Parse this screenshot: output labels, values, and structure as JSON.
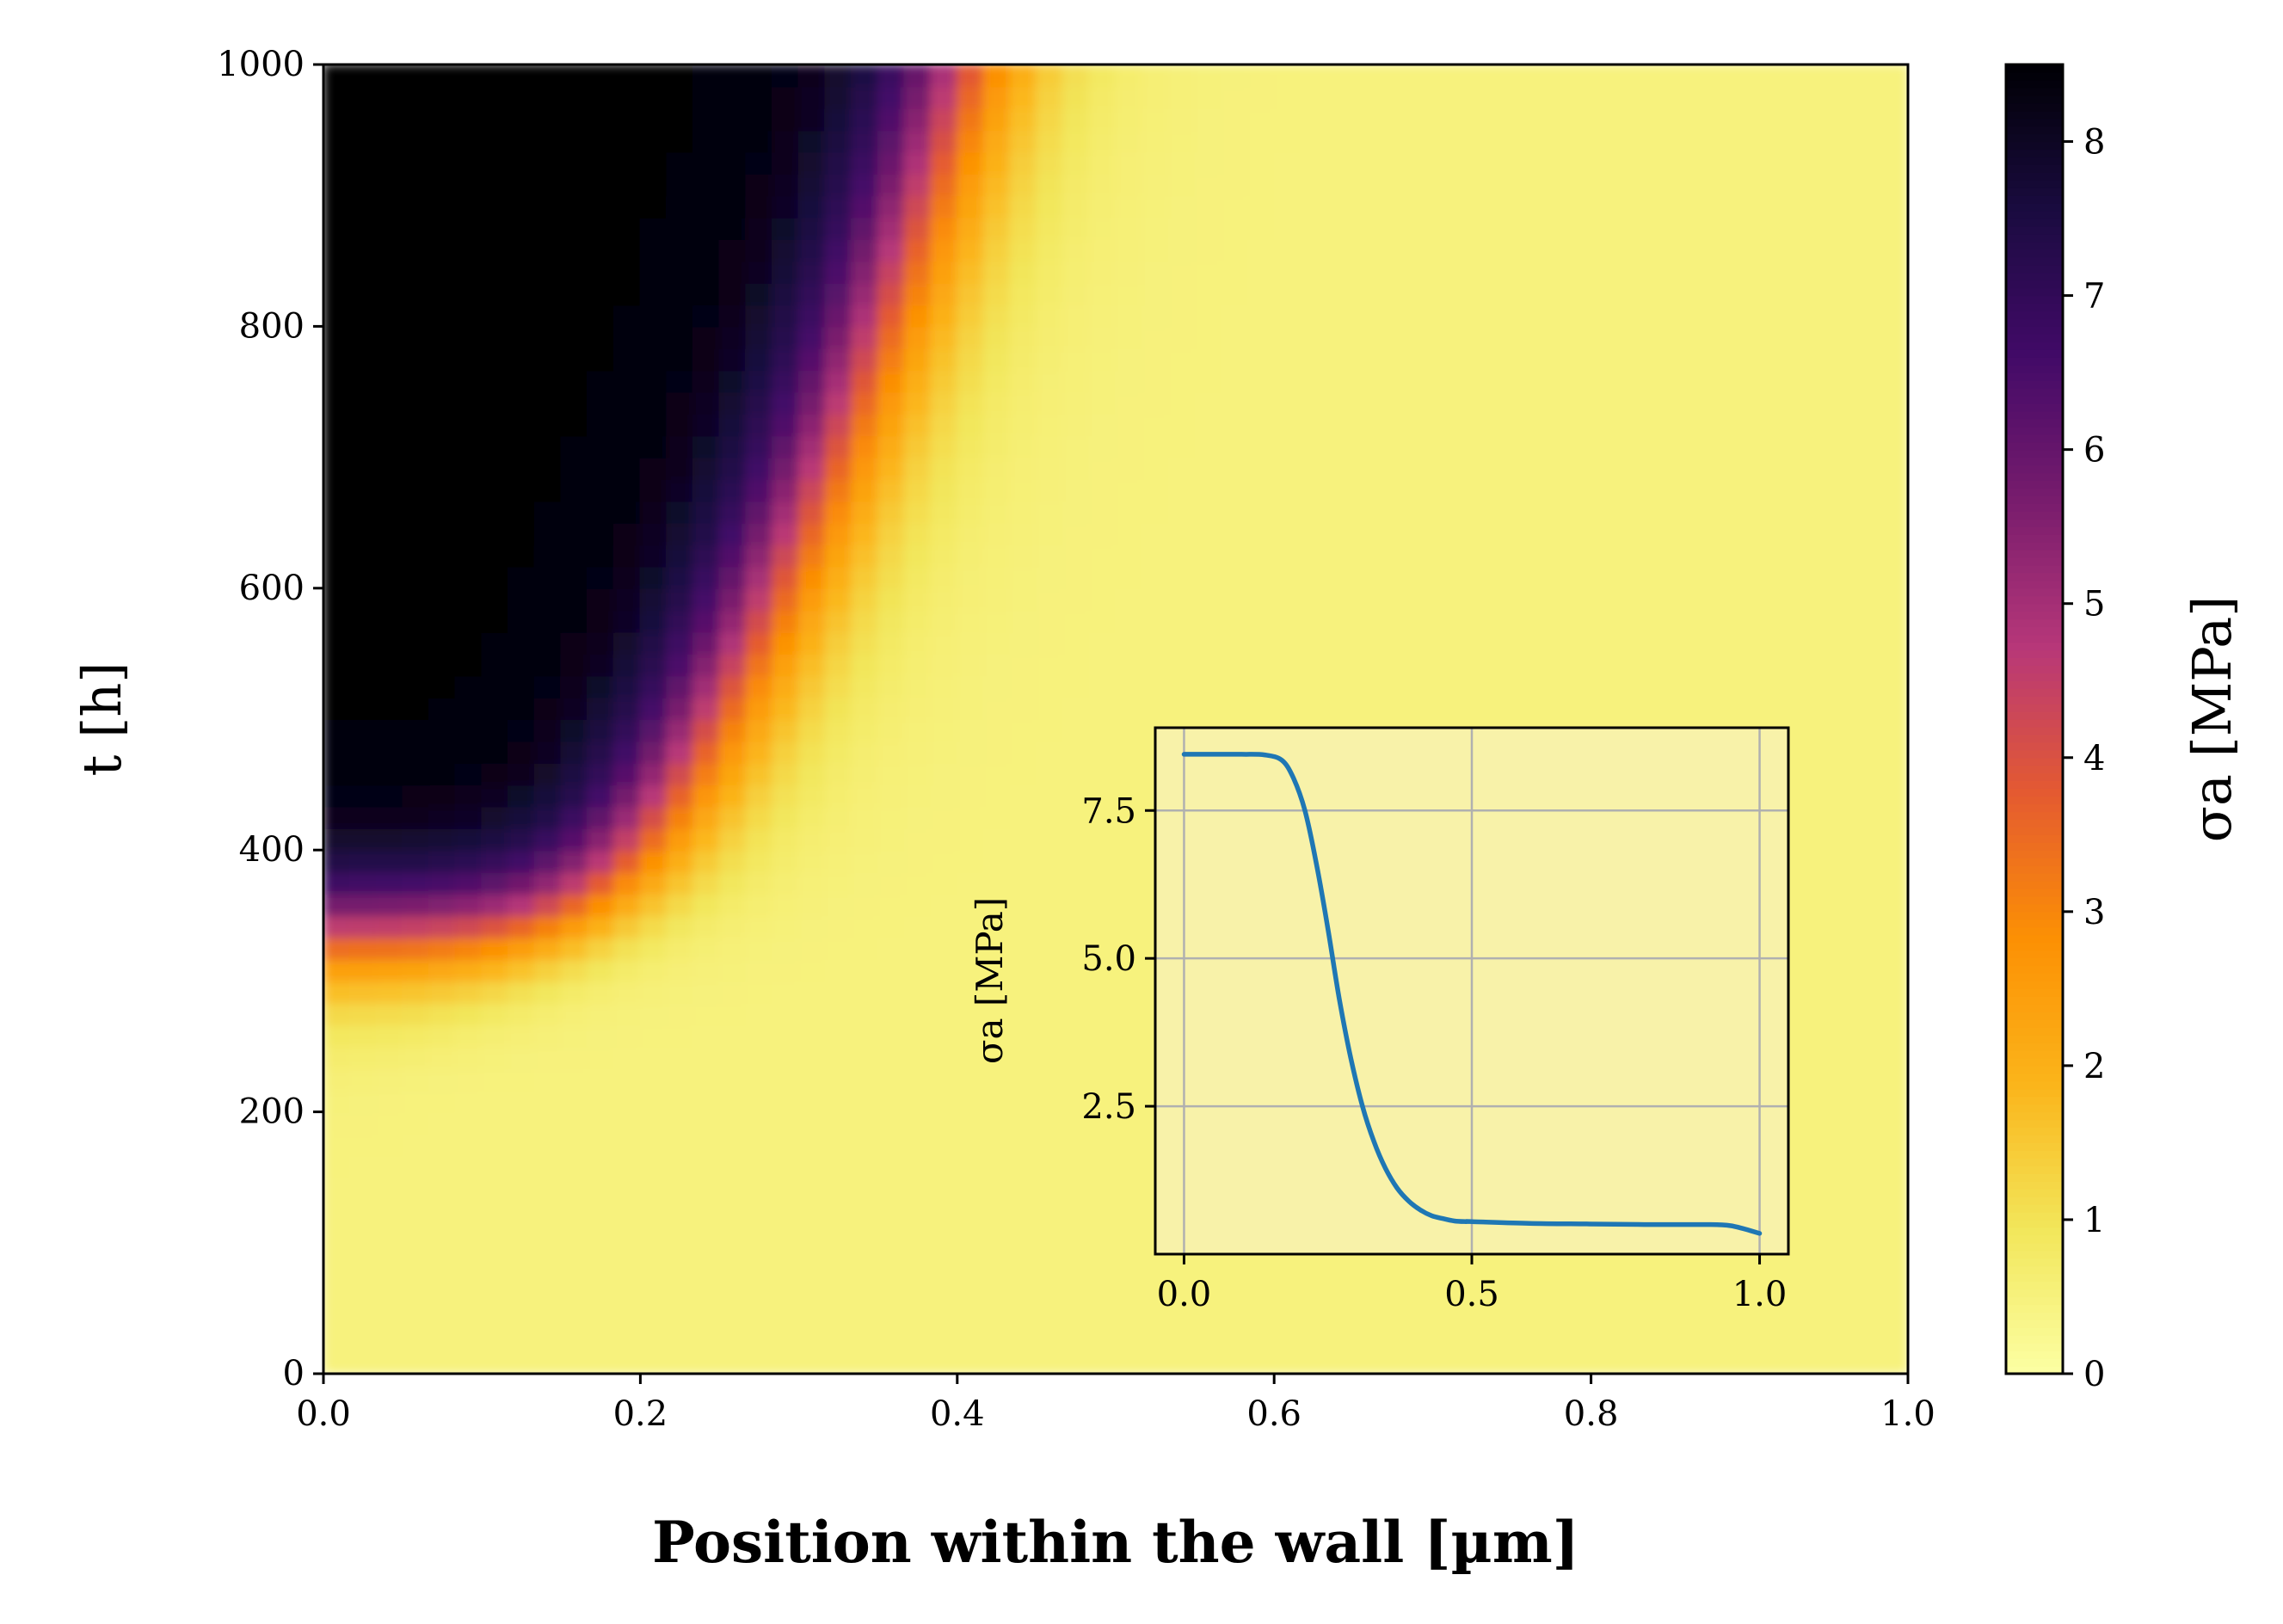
{
  "chart_data": [
    {
      "type": "heatmap",
      "xlabel": "Position within the wall [µm]",
      "ylabel": "t [h]",
      "colorbar_label": "σa [MPa]",
      "xlim": [
        0.0,
        1.0
      ],
      "ylim": [
        0,
        1000
      ],
      "xticks": [
        "0.0",
        "0.2",
        "0.4",
        "0.6",
        "0.8",
        "1.0"
      ],
      "yticks": [
        "0",
        "200",
        "400",
        "600",
        "800",
        "1000"
      ],
      "colorbar_ticks": [
        "0",
        "1",
        "2",
        "3",
        "4",
        "5",
        "6",
        "7",
        "8"
      ],
      "colorbar_range": [
        0,
        8.5
      ],
      "colormap": "inferno_r",
      "colormap_stops": [
        "#fcffa4",
        "#f2e65a",
        "#fbb41a",
        "#fc9004",
        "#e45a31",
        "#b73779",
        "#781c6d",
        "#420a68",
        "#1a0b40",
        "#000004"
      ],
      "surface": "σa ≈ 8.5 MPa behind a front that reaches x ≈ 0.2 µm at t ≈ 400 h and x ≈ 0.4 µm at t = 1000 h; σa ≈ 0.5 MPa ahead of the front and for t < 250 h"
    },
    {
      "type": "line",
      "inset": true,
      "ylabel": "σa [MPa]",
      "xticks": [
        "0.0",
        "0.5",
        "1.0"
      ],
      "yticks": [
        "2.5",
        "5.0",
        "7.5"
      ],
      "xlim": [
        -0.05,
        1.05
      ],
      "ylim": [
        0.0,
        8.9
      ],
      "grid": true,
      "line_color": "#1f77b4",
      "x": [
        0.0,
        0.05,
        0.1,
        0.14,
        0.17,
        0.19,
        0.21,
        0.23,
        0.25,
        0.27,
        0.29,
        0.31,
        0.33,
        0.35,
        0.37,
        0.39,
        0.41,
        0.43,
        0.45,
        0.47,
        0.49,
        0.5,
        0.6,
        0.7,
        0.8,
        0.9,
        0.95,
        1.0
      ],
      "y": [
        8.45,
        8.45,
        8.45,
        8.44,
        8.35,
        8.05,
        7.5,
        6.6,
        5.5,
        4.3,
        3.3,
        2.5,
        1.9,
        1.45,
        1.12,
        0.9,
        0.75,
        0.65,
        0.6,
        0.56,
        0.55,
        0.55,
        0.52,
        0.51,
        0.5,
        0.5,
        0.48,
        0.35
      ]
    }
  ]
}
